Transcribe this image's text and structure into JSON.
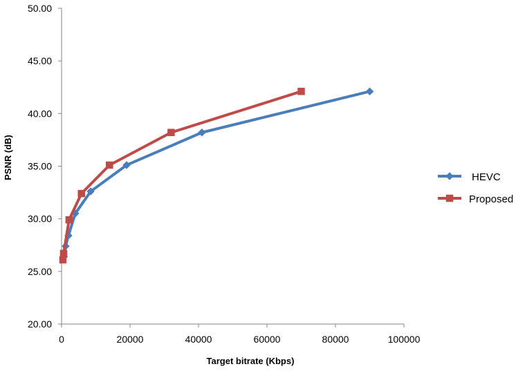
{
  "chart_data": {
    "type": "line",
    "title": "",
    "xlabel": "Target bitrate (Kbps)",
    "ylabel": "PSNR (dB)",
    "xlim": [
      0,
      100000
    ],
    "ylim": [
      20,
      50
    ],
    "x_ticks": [
      0,
      20000,
      40000,
      60000,
      80000,
      100000
    ],
    "x_tick_labels": [
      "0",
      "20000",
      "40000",
      "60000",
      "80000",
      "100000"
    ],
    "y_ticks": [
      20,
      25,
      30,
      35,
      40,
      45,
      50
    ],
    "y_tick_labels": [
      "20.00",
      "25.00",
      "30.00",
      "35.00",
      "40.00",
      "45.00",
      "50.00"
    ],
    "grid": false,
    "legend_position": "right",
    "series": [
      {
        "name": "HEVC",
        "color": "#4A7EBB",
        "marker": "diamond",
        "points": [
          {
            "x": 700,
            "y": 26.4
          },
          {
            "x": 1200,
            "y": 27.4
          },
          {
            "x": 2000,
            "y": 28.4
          },
          {
            "x": 4000,
            "y": 30.5
          },
          {
            "x": 8500,
            "y": 32.6
          },
          {
            "x": 19000,
            "y": 35.1
          },
          {
            "x": 41000,
            "y": 38.2
          },
          {
            "x": 90000,
            "y": 42.1
          }
        ]
      },
      {
        "name": "Proposed",
        "color": "#BE4B48",
        "marker": "square",
        "points": [
          {
            "x": 400,
            "y": 26.1
          },
          {
            "x": 600,
            "y": 26.7
          },
          {
            "x": 2200,
            "y": 29.9
          },
          {
            "x": 5800,
            "y": 32.4
          },
          {
            "x": 14000,
            "y": 35.1
          },
          {
            "x": 32000,
            "y": 38.2
          },
          {
            "x": 70000,
            "y": 42.1
          }
        ]
      }
    ]
  }
}
